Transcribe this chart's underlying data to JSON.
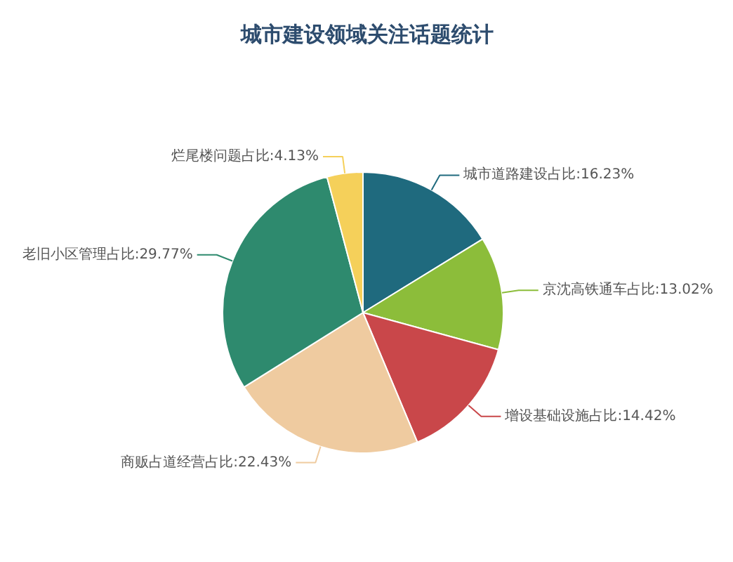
{
  "chart_data": {
    "type": "pie",
    "title": "城市建设领域关注话题统计",
    "categories": [
      "城市道路建设占比:16.23%",
      "京沈高铁通车占比:13.02%",
      "增设基础设施占比:14.42%",
      "商贩占道经营占比:22.43%",
      "老旧小区管理占比:29.77%",
      "烂尾楼问题占比:4.13%"
    ],
    "values": [
      16.23,
      13.02,
      14.42,
      22.43,
      29.77,
      4.13
    ],
    "colors": [
      "#1f6a7e",
      "#8cbd3a",
      "#c9474a",
      "#efcba0",
      "#2e8a6e",
      "#f5d05a"
    ]
  }
}
